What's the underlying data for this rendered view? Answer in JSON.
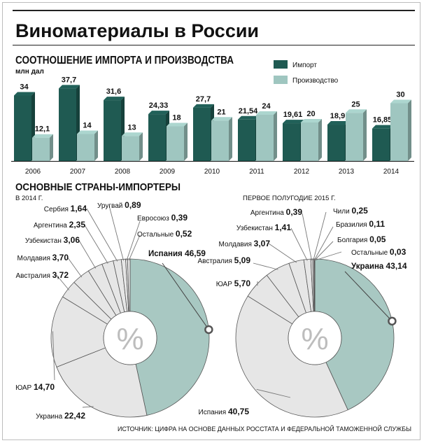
{
  "title": "Виноматериалы в России",
  "section1": {
    "title": "СООТНОШЕНИЕ ИМПОРТА И ПРОИЗВОДСТВА",
    "unit": "млн дал"
  },
  "section2": {
    "title": "ОСНОВНЫЕ СТРАНЫ-ИМПОРТЕРЫ",
    "left_period": "В 2014 Г.",
    "right_period": "ПЕРВОЕ ПОЛУГОДИЕ 2015 Г.",
    "center_symbol": "%"
  },
  "source": "ИСТОЧНИК: ЦИФРА НА ОСНОВЕ ДАННЫХ РОССТАТА И ФЕДЕРАЛЬНОЙ ТАМОЖЕННОЙ СЛУЖБЫ",
  "colors": {
    "import": "#1f5a52",
    "production": "#9fc6c0",
    "pie_highlight": "#a8c8c2",
    "pie_other": "#e6e6e6",
    "pie_stroke": "#555555"
  },
  "chart_data": [
    {
      "type": "bar",
      "categories": [
        "2006",
        "2007",
        "2008",
        "2009",
        "2010",
        "2011",
        "2012",
        "2013",
        "2014"
      ],
      "series": [
        {
          "name": "Импорт",
          "values": [
            34,
            37.7,
            31.6,
            24.33,
            27.7,
            21.54,
            19.61,
            18.9,
            16.85
          ],
          "labels": [
            "34",
            "37,7",
            "31,6",
            "24,33",
            "27,7",
            "21,54",
            "19,61",
            "18,9",
            "16,85"
          ]
        },
        {
          "name": "Производство",
          "values": [
            12.1,
            14,
            13,
            18,
            21,
            24,
            20,
            25,
            30
          ],
          "labels": [
            "12,1",
            "14",
            "13",
            "18",
            "21",
            "24",
            "20",
            "25",
            "30"
          ]
        }
      ],
      "ylabel": "млн дал",
      "ylim": [
        0,
        40
      ],
      "legend": "top-right"
    },
    {
      "type": "pie",
      "title": "В 2014 Г.",
      "slices": [
        {
          "label": "Испания",
          "value": 46.59,
          "text": "46,59",
          "highlight": true
        },
        {
          "label": "Украина",
          "value": 22.42,
          "text": "22,42"
        },
        {
          "label": "ЮАР",
          "value": 14.7,
          "text": "14,70"
        },
        {
          "label": "Австралия",
          "value": 3.72,
          "text": "3,72"
        },
        {
          "label": "Молдавия",
          "value": 3.7,
          "text": "3,70"
        },
        {
          "label": "Узбекистан",
          "value": 3.06,
          "text": "3,06"
        },
        {
          "label": "Аргентина",
          "value": 2.35,
          "text": "2,35"
        },
        {
          "label": "Сербия",
          "value": 1.64,
          "text": "1,64"
        },
        {
          "label": "Уругвай",
          "value": 0.89,
          "text": "0,89"
        },
        {
          "label": "Евросоюз",
          "value": 0.39,
          "text": "0,39"
        },
        {
          "label": "Остальные",
          "value": 0.52,
          "text": "0,52"
        }
      ]
    },
    {
      "type": "pie",
      "title": "ПЕРВОЕ ПОЛУГОДИЕ 2015 Г.",
      "slices": [
        {
          "label": "Украина",
          "value": 43.14,
          "text": "43,14",
          "highlight": true
        },
        {
          "label": "Испания",
          "value": 40.75,
          "text": "40,75"
        },
        {
          "label": "ЮАР",
          "value": 5.7,
          "text": "5,70"
        },
        {
          "label": "Австралия",
          "value": 5.09,
          "text": "5,09"
        },
        {
          "label": "Молдавия",
          "value": 3.07,
          "text": "3,07"
        },
        {
          "label": "Узбекистан",
          "value": 1.41,
          "text": "1,41"
        },
        {
          "label": "Аргентина",
          "value": 0.39,
          "text": "0,39"
        },
        {
          "label": "Чили",
          "value": 0.25,
          "text": "0,25"
        },
        {
          "label": "Бразилия",
          "value": 0.11,
          "text": "0,11"
        },
        {
          "label": "Болгария",
          "value": 0.05,
          "text": "0,05"
        },
        {
          "label": "Остальные",
          "value": 0.03,
          "text": "0,03"
        }
      ]
    }
  ]
}
